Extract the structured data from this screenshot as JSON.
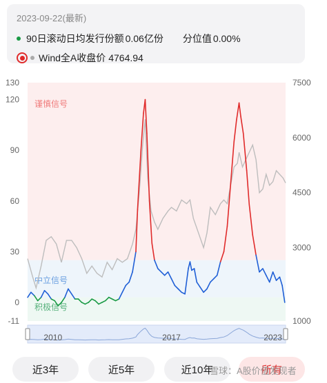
{
  "legend": {
    "date": "2023-09-22(最新)",
    "series1_label": "90日滚动日均发行份额",
    "series1_value": "0.06亿份",
    "percentile_label": "分位值",
    "percentile_value": "0.00%",
    "series2_label": "Wind全A收盘价",
    "series2_value": "4764.94"
  },
  "colors": {
    "green": "#1a9a45",
    "blue": "#1f5fd6",
    "red": "#e02a2a",
    "gray_line": "#bdbdbd",
    "zone_red": "#fdeeee",
    "zone_blue": "#eef5fb",
    "zone_green": "#eef8f3"
  },
  "chart_data": {
    "type": "line",
    "zones": [
      {
        "name": "谨慎信号",
        "range": [
          25,
          130
        ]
      },
      {
        "name": "中立信号",
        "range": [
          3,
          25
        ]
      },
      {
        "name": "积极信号",
        "range": [
          -11,
          3
        ]
      }
    ],
    "y_left": {
      "ticks": [
        "130",
        "120",
        "90",
        "60",
        "30",
        "0",
        "-11"
      ],
      "range": [
        -11,
        130
      ]
    },
    "y_right": {
      "ticks": [
        "7500",
        "6000",
        "4500",
        "3000",
        "1000"
      ],
      "range": [
        1000,
        7500
      ]
    },
    "navigator_labels": [
      "2010",
      "2017",
      "2023"
    ],
    "x": {
      "range": [
        2008.5,
        2023.75
      ]
    },
    "series": [
      {
        "name": "90日滚动日均发行份额",
        "axis": "left",
        "points": [
          [
            2008.5,
            3
          ],
          [
            2008.7,
            6
          ],
          [
            2008.9,
            4
          ],
          [
            2009.1,
            1
          ],
          [
            2009.3,
            3
          ],
          [
            2009.5,
            7
          ],
          [
            2009.7,
            5
          ],
          [
            2009.9,
            2
          ],
          [
            2010.1,
            1
          ],
          [
            2010.3,
            -2
          ],
          [
            2010.5,
            0
          ],
          [
            2010.7,
            3
          ],
          [
            2010.9,
            8
          ],
          [
            2011.1,
            5
          ],
          [
            2011.3,
            2
          ],
          [
            2011.5,
            2
          ],
          [
            2011.7,
            0
          ],
          [
            2011.9,
            -1
          ],
          [
            2012.1,
            0
          ],
          [
            2012.3,
            2
          ],
          [
            2012.5,
            1
          ],
          [
            2012.7,
            -1
          ],
          [
            2012.9,
            0
          ],
          [
            2013.1,
            1
          ],
          [
            2013.3,
            3
          ],
          [
            2013.5,
            2
          ],
          [
            2013.7,
            1
          ],
          [
            2013.9,
            2
          ],
          [
            2014.1,
            6
          ],
          [
            2014.3,
            10
          ],
          [
            2014.5,
            12
          ],
          [
            2014.7,
            18
          ],
          [
            2014.9,
            30
          ],
          [
            2015.0,
            55
          ],
          [
            2015.2,
            90
          ],
          [
            2015.35,
            112
          ],
          [
            2015.45,
            120
          ],
          [
            2015.55,
            100
          ],
          [
            2015.7,
            60
          ],
          [
            2015.85,
            35
          ],
          [
            2016.0,
            25
          ],
          [
            2016.2,
            20
          ],
          [
            2016.4,
            18
          ],
          [
            2016.6,
            16
          ],
          [
            2016.8,
            18
          ],
          [
            2017.0,
            14
          ],
          [
            2017.2,
            10
          ],
          [
            2017.4,
            8
          ],
          [
            2017.6,
            6
          ],
          [
            2017.8,
            5
          ],
          [
            2018.0,
            20
          ],
          [
            2018.1,
            24
          ],
          [
            2018.2,
            19
          ],
          [
            2018.35,
            20
          ],
          [
            2018.5,
            12
          ],
          [
            2018.7,
            9
          ],
          [
            2018.9,
            6
          ],
          [
            2019.1,
            8
          ],
          [
            2019.3,
            12
          ],
          [
            2019.5,
            14
          ],
          [
            2019.7,
            16
          ],
          [
            2019.9,
            24
          ],
          [
            2020.1,
            30
          ],
          [
            2020.3,
            45
          ],
          [
            2020.5,
            70
          ],
          [
            2020.7,
            95
          ],
          [
            2020.85,
            108
          ],
          [
            2021.0,
            118
          ],
          [
            2021.1,
            110
          ],
          [
            2021.25,
            100
          ],
          [
            2021.45,
            78
          ],
          [
            2021.6,
            58
          ],
          [
            2021.8,
            40
          ],
          [
            2022.0,
            28
          ],
          [
            2022.2,
            18
          ],
          [
            2022.4,
            20
          ],
          [
            2022.6,
            16
          ],
          [
            2022.8,
            12
          ],
          [
            2023.0,
            18
          ],
          [
            2023.2,
            13
          ],
          [
            2023.4,
            15
          ],
          [
            2023.55,
            10
          ],
          [
            2023.7,
            0
          ]
        ]
      },
      {
        "name": "Wind全A收盘价",
        "axis": "right",
        "points": [
          [
            2008.5,
            2700
          ],
          [
            2008.8,
            2200
          ],
          [
            2009.0,
            1900
          ],
          [
            2009.3,
            2500
          ],
          [
            2009.6,
            3200
          ],
          [
            2009.9,
            3300
          ],
          [
            2010.2,
            3100
          ],
          [
            2010.5,
            2600
          ],
          [
            2010.8,
            3200
          ],
          [
            2011.1,
            3200
          ],
          [
            2011.4,
            3000
          ],
          [
            2011.7,
            2700
          ],
          [
            2012.0,
            2300
          ],
          [
            2012.3,
            2500
          ],
          [
            2012.6,
            2300
          ],
          [
            2012.9,
            2200
          ],
          [
            2013.2,
            2600
          ],
          [
            2013.5,
            2400
          ],
          [
            2013.8,
            2700
          ],
          [
            2014.1,
            2600
          ],
          [
            2014.4,
            2700
          ],
          [
            2014.7,
            3100
          ],
          [
            2014.9,
            3500
          ],
          [
            2015.1,
            4500
          ],
          [
            2015.3,
            5800
          ],
          [
            2015.45,
            6500
          ],
          [
            2015.6,
            4900
          ],
          [
            2015.8,
            4000
          ],
          [
            2016.0,
            3700
          ],
          [
            2016.2,
            3500
          ],
          [
            2016.5,
            3800
          ],
          [
            2016.8,
            4000
          ],
          [
            2017.0,
            4100
          ],
          [
            2017.3,
            4000
          ],
          [
            2017.6,
            4300
          ],
          [
            2017.9,
            4200
          ],
          [
            2018.1,
            4300
          ],
          [
            2018.3,
            3800
          ],
          [
            2018.6,
            3400
          ],
          [
            2018.9,
            3000
          ],
          [
            2019.1,
            3400
          ],
          [
            2019.3,
            4100
          ],
          [
            2019.6,
            3900
          ],
          [
            2019.9,
            4200
          ],
          [
            2020.1,
            4300
          ],
          [
            2020.3,
            4200
          ],
          [
            2020.5,
            4700
          ],
          [
            2020.7,
            5200
          ],
          [
            2020.9,
            5300
          ],
          [
            2021.0,
            5600
          ],
          [
            2021.2,
            5200
          ],
          [
            2021.5,
            5500
          ],
          [
            2021.8,
            5800
          ],
          [
            2022.0,
            5400
          ],
          [
            2022.2,
            4500
          ],
          [
            2022.4,
            4600
          ],
          [
            2022.6,
            5000
          ],
          [
            2022.8,
            4700
          ],
          [
            2023.0,
            4800
          ],
          [
            2023.2,
            5100
          ],
          [
            2023.4,
            5000
          ],
          [
            2023.6,
            4900
          ],
          [
            2023.75,
            4765
          ]
        ]
      }
    ]
  },
  "buttons": [
    {
      "label": "近3年",
      "active": false
    },
    {
      "label": "近5年",
      "active": false
    },
    {
      "label": "近10年",
      "active": false
    },
    {
      "label": "所有",
      "active": true
    }
  ],
  "watermark": "雪球：A股价值发现者"
}
